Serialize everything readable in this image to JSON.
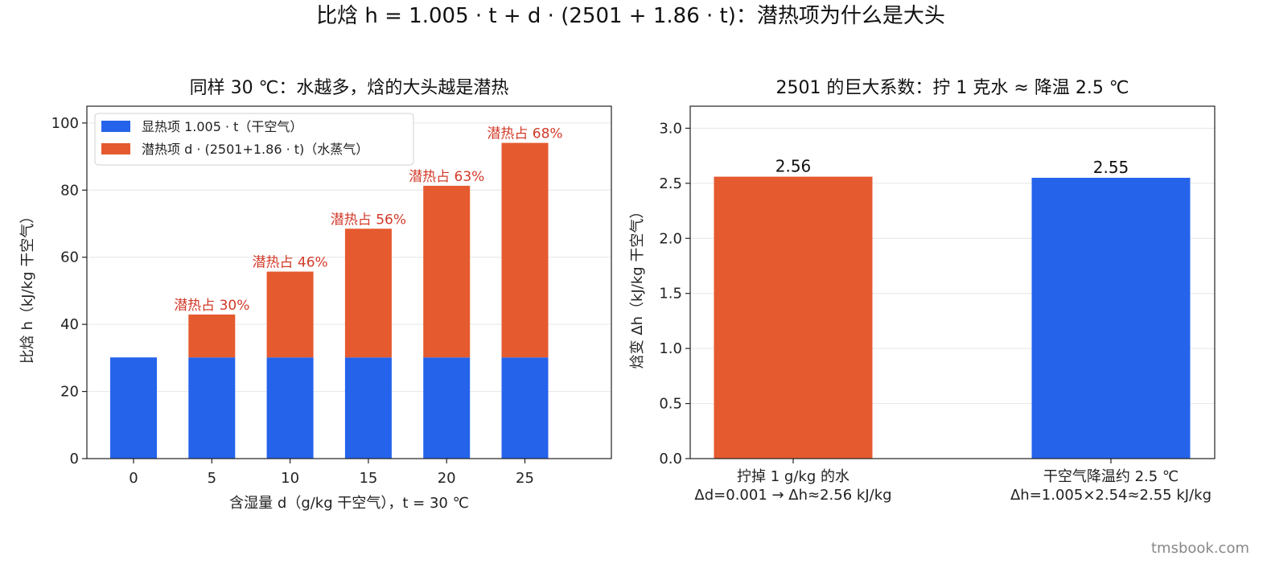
{
  "figure": {
    "suptitle": "比焓 h = 1.005 · t + d · (2501 + 1.86 · t)：潜热项为什么是大头",
    "watermark": "tmsbook.com"
  },
  "colors": {
    "sensible": "#2563eb",
    "latent": "#e55a2f",
    "annot": "#d23a2a"
  },
  "chart_data": [
    {
      "type": "bar",
      "stacked": true,
      "title": "同样 30 ℃：水越多，焓的大头越是潜热",
      "xlabel": "含湿量 d（g/kg 干空气），t = 30 ℃",
      "ylabel": "比焓 h（kJ/kg 干空气）",
      "categories": [
        "0",
        "5",
        "10",
        "15",
        "20",
        "25"
      ],
      "ylim": [
        0,
        105
      ],
      "yticks": [
        "0",
        "20",
        "40",
        "60",
        "80",
        "100"
      ],
      "grid": true,
      "legend_position": "upper-left",
      "series": [
        {
          "name": "显热项 1.005 · t（干空气）",
          "values": [
            30.15,
            30.15,
            30.15,
            30.15,
            30.15,
            30.15
          ]
        },
        {
          "name": "潜热项 d · (2501+1.86 · t)（水蒸气）",
          "values": [
            0,
            12.78,
            25.57,
            38.35,
            51.14,
            63.92
          ]
        }
      ],
      "annotations": [
        "",
        "潜热占 30%",
        "潜热占 46%",
        "潜热占 56%",
        "潜热占 63%",
        "潜热占 68%"
      ]
    },
    {
      "type": "bar",
      "title": "2501 的巨大系数：拧 1 克水 ≈ 降温 2.5 ℃",
      "ylabel": "焓变 Δh（kJ/kg 干空气）",
      "categories": [
        [
          "拧掉 1 g/kg 的水",
          "Δd=0.001 → Δh≈2.56 kJ/kg"
        ],
        [
          "干空气降温约 2.5 ℃",
          "Δh=1.005×2.54≈2.55 kJ/kg"
        ]
      ],
      "values": [
        2.56,
        2.55
      ],
      "value_labels": [
        "2.56",
        "2.55"
      ],
      "ylim": [
        0,
        3.2
      ],
      "yticks": [
        "0.0",
        "0.5",
        "1.0",
        "1.5",
        "2.0",
        "2.5",
        "3.0"
      ],
      "grid": true
    }
  ]
}
